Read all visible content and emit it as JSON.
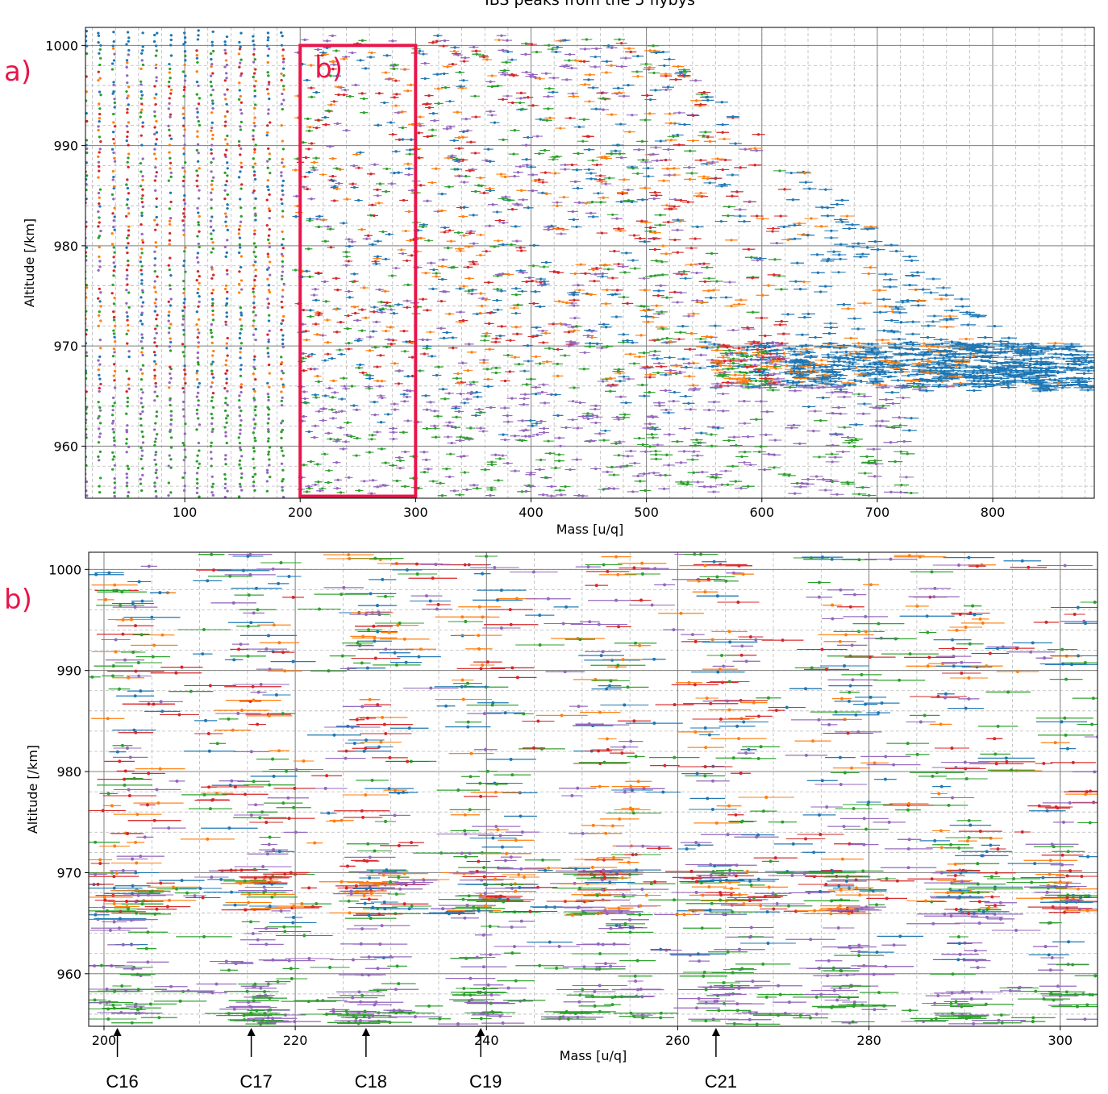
{
  "chart_data": [
    {
      "type": "scatter",
      "panel_label": "a)",
      "title": "IBS peaks from the 5 flybys",
      "xlabel": "Mass [u/q]",
      "ylabel": "Altitude [/km]",
      "xlim": [
        14,
        888
      ],
      "ylim": [
        954.8,
        1001.8
      ],
      "xticks": [
        100,
        200,
        300,
        400,
        500,
        600,
        700,
        800
      ],
      "yticks": [
        960,
        970,
        980,
        990,
        1000
      ],
      "grid": true,
      "series_colors": [
        "#1f77b4",
        "#ff7f0e",
        "#2ca02c",
        "#d62728",
        "#9467bd"
      ],
      "inset_label": "b)",
      "inset_box": {
        "x": [
          200,
          300
        ],
        "y": [
          955,
          1000
        ]
      },
      "inset_color": "#e8164a"
    },
    {
      "type": "scatter",
      "panel_label": "b)",
      "title": "",
      "xlabel": "Mass [u/q]",
      "ylabel": "Altitude [/km]",
      "xlim": [
        198.4,
        303.9
      ],
      "ylim": [
        954.8,
        1001.7
      ],
      "xticks": [
        200,
        220,
        240,
        260,
        280,
        300
      ],
      "yticks": [
        960,
        970,
        980,
        990,
        1000
      ],
      "grid": true,
      "series_colors": [
        "#1f77b4",
        "#ff7f0e",
        "#2ca02c",
        "#d62728",
        "#9467bd"
      ],
      "annotations": [
        {
          "label": "C16",
          "x": 201.4
        },
        {
          "label": "C17",
          "x": 215.4
        },
        {
          "label": "C18",
          "x": 227.4
        },
        {
          "label": "C19",
          "x": 239.4
        },
        {
          "label": "C21",
          "x": 264.0
        }
      ]
    }
  ]
}
